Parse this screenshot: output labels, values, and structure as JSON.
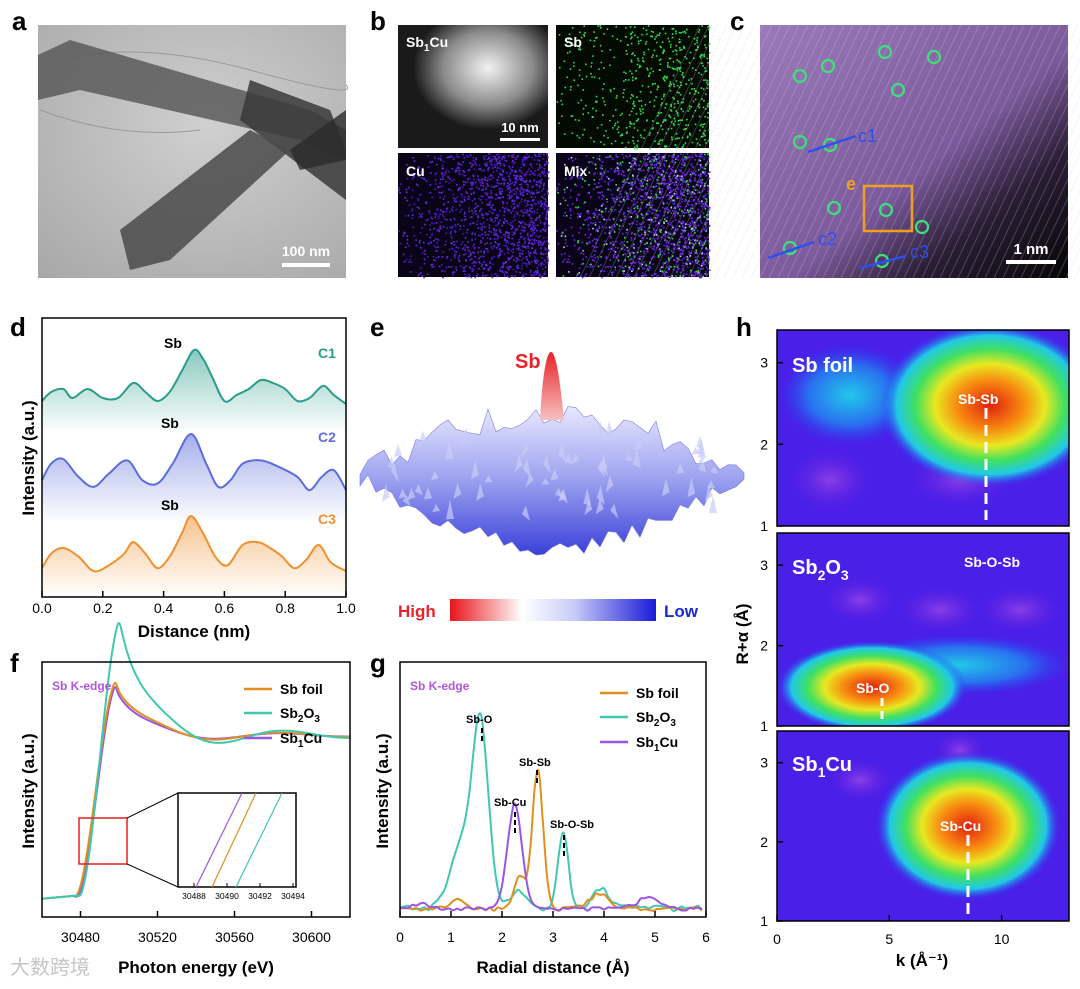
{
  "figure": {
    "panel_letters": {
      "a": "a",
      "b": "b",
      "c": "c",
      "d": "d",
      "e": "e",
      "f": "f",
      "g": "g",
      "h": "h"
    },
    "watermark": "大数跨境"
  },
  "panel_a": {
    "scale_bar": "100 nm"
  },
  "panel_b": {
    "tiles": [
      "Sb",
      "Sb",
      "Cu",
      "Mix"
    ],
    "tile0_prefix": "Sb",
    "tile0_sub": "1",
    "tile0_suffix": "Cu",
    "scale_bar": "10 nm"
  },
  "panel_c": {
    "labels": [
      "c1",
      "c2",
      "c3"
    ],
    "box_label": "e",
    "scale_bar": "1 nm"
  },
  "panel_d": {
    "ylabel": "Intensity (a.u.)",
    "xlabel": "Distance (nm)",
    "series": [
      {
        "name": "C1",
        "color": "#2a9d8a",
        "peak": "Sb",
        "x": [
          0,
          0.03,
          0.07,
          0.1,
          0.15,
          0.2,
          0.25,
          0.3,
          0.34,
          0.38,
          0.42,
          0.46,
          0.5,
          0.53,
          0.56,
          0.6,
          0.64,
          0.68,
          0.72,
          0.76,
          0.8,
          0.84,
          0.88,
          0.91,
          0.93,
          0.96,
          1.0
        ],
        "y": [
          0.15,
          0.3,
          0.35,
          0.2,
          0.35,
          0.2,
          0.2,
          0.45,
          0.3,
          0.15,
          0.3,
          0.65,
          1.0,
          0.85,
          0.55,
          0.15,
          0.25,
          0.35,
          0.5,
          0.45,
          0.35,
          0.15,
          0.2,
          0.35,
          0.4,
          0.25,
          0.1
        ]
      },
      {
        "name": "C2",
        "color": "#5b6ddc",
        "peak": "Sb",
        "x": [
          0,
          0.03,
          0.07,
          0.12,
          0.17,
          0.22,
          0.28,
          0.33,
          0.38,
          0.43,
          0.49,
          0.54,
          0.58,
          0.62,
          0.66,
          0.72,
          0.78,
          0.84,
          0.88,
          0.92,
          0.96,
          1.0
        ],
        "y": [
          0.3,
          0.55,
          0.62,
          0.35,
          0.2,
          0.4,
          0.6,
          0.3,
          0.25,
          0.55,
          1.0,
          0.55,
          0.2,
          0.3,
          0.55,
          0.6,
          0.5,
          0.35,
          0.15,
          0.35,
          0.45,
          0.15
        ]
      },
      {
        "name": "C3",
        "color": "#f0912e",
        "peak": "Sb",
        "x": [
          0,
          0.03,
          0.07,
          0.12,
          0.17,
          0.22,
          0.27,
          0.3,
          0.34,
          0.38,
          0.42,
          0.46,
          0.49,
          0.53,
          0.57,
          0.61,
          0.66,
          0.71,
          0.75,
          0.79,
          0.83,
          0.87,
          0.91,
          0.95,
          1.0
        ],
        "y": [
          0.1,
          0.35,
          0.45,
          0.3,
          0.05,
          0.15,
          0.35,
          0.55,
          0.35,
          0.1,
          0.3,
          0.7,
          1.0,
          0.7,
          0.3,
          0.15,
          0.5,
          0.55,
          0.45,
          0.3,
          0.1,
          0.25,
          0.5,
          0.2,
          0.05
        ]
      }
    ],
    "xticks": [
      "0.0",
      "0.2",
      "0.4",
      "0.6",
      "0.8",
      "1.0"
    ],
    "xlim": [
      0,
      1.0
    ]
  },
  "panel_e": {
    "peak_label": "Sb",
    "legend_high": "High",
    "legend_low": "Low"
  },
  "panel_f": {
    "edge_label": "Sb K-edge",
    "ylabel": "Intensity (a.u.)",
    "xlabel": "Photon energy (eV)",
    "xticks": [
      "30480",
      "30520",
      "30560",
      "30600"
    ],
    "xlim": [
      30460,
      30620
    ],
    "legend": [
      {
        "prefix": "Sb foil",
        "sub": "",
        "suffix": "",
        "color": "#e08e20"
      },
      {
        "prefix": "Sb",
        "sub": "2",
        "suffix": "O",
        "sub2": "3",
        "color": "#3ec8b0"
      },
      {
        "prefix": "Sb",
        "sub": "1",
        "suffix": "Cu",
        "color": "#9a55e0"
      }
    ],
    "inset_ticks": [
      "30488",
      "30490",
      "30492",
      "30494"
    ]
  },
  "panel_g": {
    "edge_label": "Sb K-edge",
    "ylabel": "Intensity (a.u.)",
    "xlabel": "Radial distance (Å)",
    "xticks": [
      "0",
      "1",
      "2",
      "3",
      "4",
      "5",
      "6"
    ],
    "xlim": [
      0,
      6
    ],
    "bond_labels": [
      "Sb-O",
      "Sb-Sb",
      "Sb-Cu",
      "Sb-O-Sb"
    ],
    "legend": [
      {
        "prefix": "Sb foil",
        "sub": "",
        "suffix": "",
        "color": "#e08e20"
      },
      {
        "prefix": "Sb",
        "sub": "2",
        "suffix": "O",
        "sub2": "3",
        "color": "#3ec8b0"
      },
      {
        "prefix": "Sb",
        "sub": "1",
        "suffix": "Cu",
        "color": "#9a55e0"
      }
    ]
  },
  "panel_h": {
    "ylabel": "R+α (Å)",
    "xlabel": "k (Å⁻¹)",
    "xticks": [
      "0",
      "5",
      "10"
    ],
    "yticks": [
      "1",
      "2",
      "3"
    ],
    "maps": [
      {
        "title_prefix": "Sb foil",
        "title_sub": "",
        "title_suffix": "",
        "bond": "Sb-Sb"
      },
      {
        "title_prefix": "Sb",
        "title_sub": "2",
        "title_suffix": "O",
        "title_sub2": "3",
        "bond": "Sb-O",
        "extra": "Sb-O-Sb"
      },
      {
        "title_prefix": "Sb",
        "title_sub": "1",
        "title_suffix": "Cu",
        "bond": "Sb-Cu"
      }
    ]
  }
}
